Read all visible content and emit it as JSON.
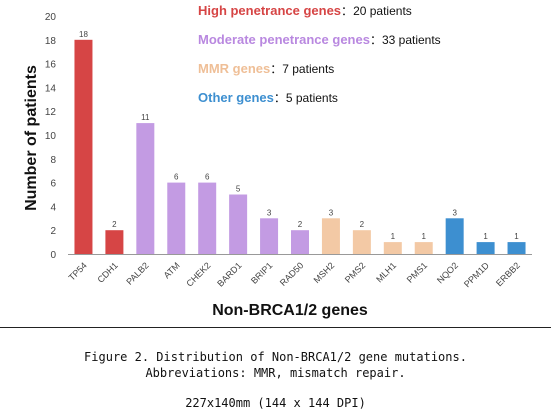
{
  "chart_data": {
    "type": "bar",
    "title": "",
    "xlabel": "Non-BRCA1/2 genes",
    "ylabel": "Number of patients",
    "ylim": [
      0,
      20
    ],
    "yticks": [
      "0",
      "2",
      "4",
      "6",
      "8",
      "10",
      "12",
      "14",
      "16",
      "18",
      "20"
    ],
    "grid": false,
    "categories": [
      "TP54",
      "CDH1",
      "PALB2",
      "ATM",
      "CHEK2",
      "BARD1",
      "BRIP1",
      "RAD50",
      "MSH2",
      "PMS2",
      "MLH1",
      "PMS1",
      "NQO2",
      "PPM1D",
      "ERBB2"
    ],
    "values": [
      18,
      2,
      11,
      6,
      6,
      5,
      3,
      2,
      3,
      2,
      1,
      1,
      3,
      1,
      1
    ],
    "groups": [
      "high",
      "high",
      "moderate",
      "moderate",
      "moderate",
      "moderate",
      "moderate",
      "moderate",
      "mmr",
      "mmr",
      "mmr",
      "mmr",
      "other",
      "other",
      "other"
    ],
    "colors": {
      "high": "#d64545",
      "moderate": "#c39be3",
      "mmr": "#f3c9a5",
      "other": "#3d8fd0"
    },
    "legend": [
      {
        "group": "high",
        "name": "High penetrance genes",
        "sep": "：",
        "count": "20 patients",
        "color": "#d64545"
      },
      {
        "group": "moderate",
        "name": "Moderate penetrance genes",
        "sep": "：",
        "count": "33 patients",
        "color": "#b988e0"
      },
      {
        "group": "mmr",
        "name": "MMR genes",
        "sep": "：",
        "count": "7 patients",
        "color": "#efbf97"
      },
      {
        "group": "other",
        "name": "Other genes",
        "sep": "：",
        "count": "5 patients",
        "color": "#3d8fd0"
      }
    ]
  },
  "caption": {
    "line1": "Figure 2. Distribution of Non-BRCA1/2 gene mutations.",
    "line2": "Abbreviations: MMR, mismatch repair.",
    "line3": "227x140mm (144 x 144 DPI)"
  }
}
